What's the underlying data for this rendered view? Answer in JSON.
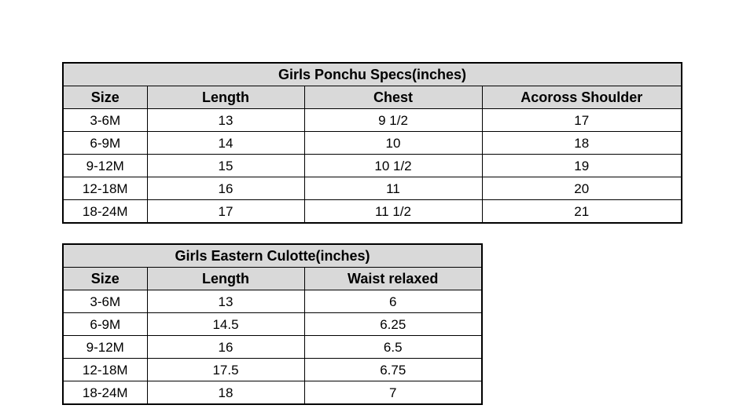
{
  "colors": {
    "background": "#ffffff",
    "header_fill": "#d9d9d9",
    "border": "#000000",
    "text": "#000000"
  },
  "chart_data": [
    {
      "type": "table",
      "title": "Girls Ponchu Specs(inches)",
      "columns": [
        "Size",
        "Length",
        "Chest",
        "Acoross Shoulder"
      ],
      "rows": [
        [
          "3-6M",
          "13",
          "9 1/2",
          "17"
        ],
        [
          "6-9M",
          "14",
          "10",
          "18"
        ],
        [
          "9-12M",
          "15",
          "10 1/2",
          "19"
        ],
        [
          "12-18M",
          "16",
          "11",
          "20"
        ],
        [
          "18-24M",
          "17",
          "11 1/2",
          "21"
        ]
      ]
    },
    {
      "type": "table",
      "title": "Girls Eastern Culotte(inches)",
      "columns": [
        "Size",
        "Length",
        "Waist relaxed"
      ],
      "rows": [
        [
          "3-6M",
          "13",
          "6"
        ],
        [
          "6-9M",
          "14.5",
          "6.25"
        ],
        [
          "9-12M",
          "16",
          "6.5"
        ],
        [
          "12-18M",
          "17.5",
          "6.75"
        ],
        [
          "18-24M",
          "18",
          "7"
        ]
      ]
    }
  ]
}
